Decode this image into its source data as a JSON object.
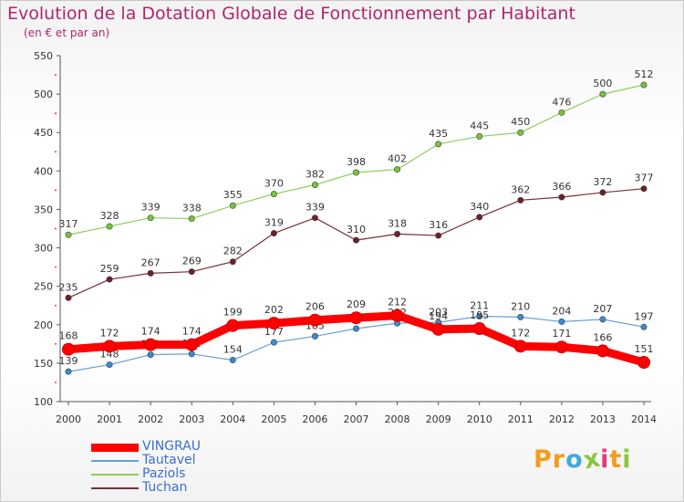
{
  "title": "Evolution de la Dotation Globale de Fonctionnement par Habitant",
  "subtitle": "(en € et par an)",
  "brand": {
    "letters": [
      "P",
      "r",
      "o",
      "x",
      "i",
      "t",
      "i"
    ],
    "colors": [
      "#f59b1e",
      "#f59b1e",
      "#3fa9dd",
      "#8dc63f",
      "#e23c7b",
      "#f59b1e",
      "#8dc63f"
    ]
  },
  "colors": {
    "title": "#b0246c",
    "axis": "#555555",
    "grid": "#e6e6e6",
    "tick_marks": "#d04070",
    "legend_text": "#3a6fd0"
  },
  "chart_data": {
    "type": "line",
    "title": "Evolution de la Dotation Globale de Fonctionnement par Habitant",
    "subtitle": "(en € et par an)",
    "xlabel": "",
    "ylabel": "",
    "x": [
      "2000",
      "2001",
      "2002",
      "2003",
      "2004",
      "2005",
      "2006",
      "2007",
      "2008",
      "2009",
      "2010",
      "2011",
      "2012",
      "2013",
      "2014"
    ],
    "ylim": [
      100,
      550
    ],
    "yticks": [
      100,
      150,
      200,
      250,
      300,
      350,
      400,
      450,
      500,
      550
    ],
    "grid": false,
    "legend_position": "bottom-left",
    "series": [
      {
        "name": "Paziols",
        "color": "#8ccf5a",
        "marker": "#79c23a",
        "width": 1.2,
        "values": [
          317,
          328,
          339,
          338,
          355,
          370,
          382,
          398,
          402,
          435,
          445,
          450,
          476,
          500,
          512
        ]
      },
      {
        "name": "Tuchan",
        "color": "#7a2d3a",
        "marker": "#6e1f2e",
        "width": 1.2,
        "values": [
          235,
          259,
          267,
          269,
          282,
          319,
          339,
          310,
          318,
          316,
          340,
          362,
          366,
          372,
          377
        ]
      },
      {
        "name": "Tautavel",
        "color": "#6a9fd4",
        "marker": "#3b8ad0",
        "width": 1.2,
        "values": [
          139,
          148,
          161,
          162,
          154,
          177,
          185,
          195,
          202,
          203,
          211,
          210,
          204,
          207,
          197
        ]
      },
      {
        "name": "VINGRAU",
        "color": "#ff0000",
        "marker": "#ff0000",
        "width": 9,
        "values": [
          168,
          172,
          174,
          174,
          199,
          202,
          206,
          209,
          212,
          194,
          195,
          172,
          171,
          166,
          151
        ]
      }
    ],
    "legend_order": [
      "VINGRAU",
      "Tautavel",
      "Paziols",
      "Tuchan"
    ]
  }
}
